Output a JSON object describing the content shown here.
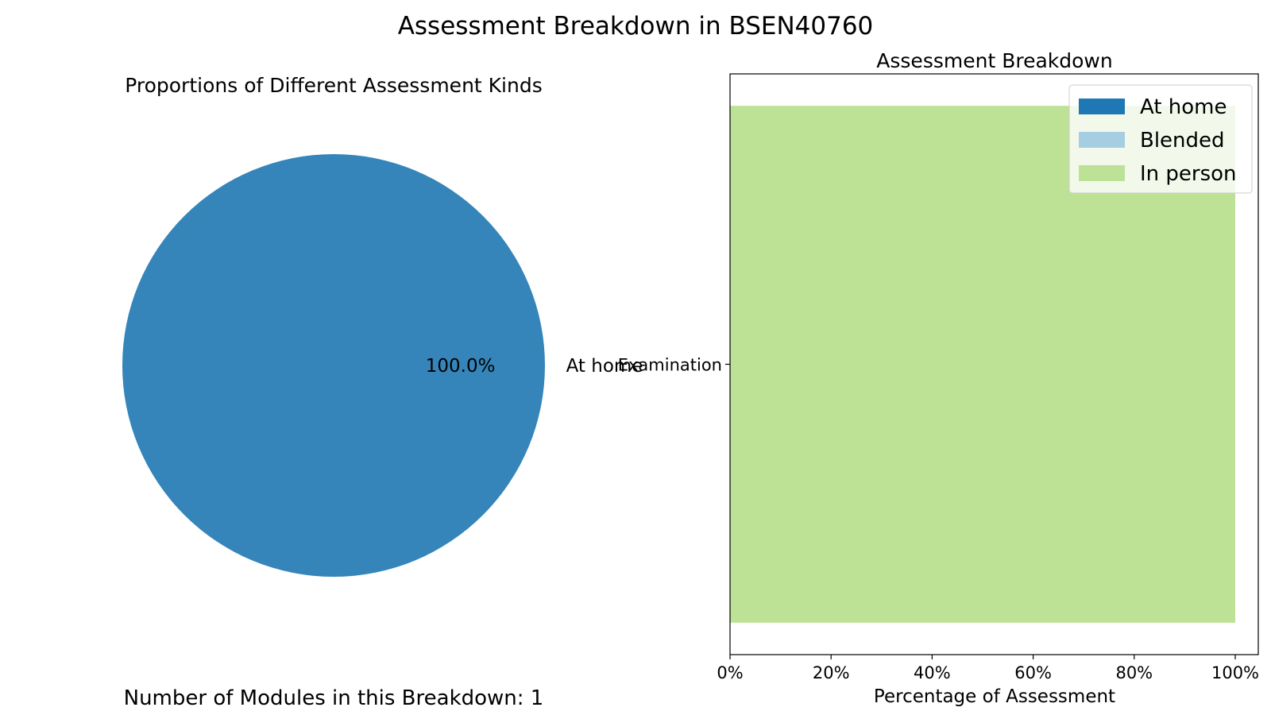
{
  "figure": {
    "suptitle": "Assessment Breakdown in BSEN40760",
    "footnote": "Number of Modules in this Breakdown: 1"
  },
  "colors": {
    "pie_at_home": "#3585ba",
    "at_home": "#1f78b4",
    "blended": "#a6cee3",
    "in_person": "#bde195",
    "axis": "#000000"
  },
  "chart_data": [
    {
      "type": "pie",
      "title": "Proportions of Different Assessment Kinds",
      "slices": [
        {
          "label": "At home",
          "value": 100.0,
          "pct_label": "100.0%"
        }
      ]
    },
    {
      "type": "bar",
      "orientation": "horizontal",
      "stacked": true,
      "title": "Assessment Breakdown",
      "xlabel": "Percentage of Assessment",
      "ylabel": "",
      "categories": [
        "Examination"
      ],
      "xlim": [
        0,
        100
      ],
      "xticks": [
        0,
        20,
        40,
        60,
        80,
        100
      ],
      "xtick_labels": [
        "0%",
        "20%",
        "40%",
        "60%",
        "80%",
        "100%"
      ],
      "series": [
        {
          "name": "At home",
          "values": [
            0
          ]
        },
        {
          "name": "Blended",
          "values": [
            0
          ]
        },
        {
          "name": "In person",
          "values": [
            100
          ]
        }
      ],
      "legend": {
        "position": "top-right",
        "entries": [
          "At home",
          "Blended",
          "In person"
        ]
      },
      "grid": false
    }
  ]
}
